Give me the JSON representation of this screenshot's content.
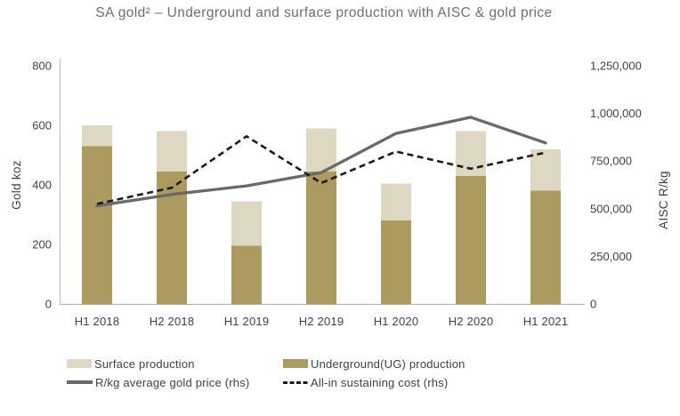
{
  "chart_data": {
    "type": "bar",
    "subtype": "stacked-bars-with-lines",
    "title": "SA gold² – Underground and surface production with AISC & gold price",
    "categories": [
      "H1 2018",
      "H2 2018",
      "H1 2019",
      "H2 2019",
      "H1 2020",
      "H2 2020",
      "H1 2021"
    ],
    "bar_series": [
      {
        "name": "Underground(UG) production",
        "values": [
          530,
          445,
          195,
          445,
          280,
          430,
          380
        ],
        "color": "#ab9b5e",
        "axis": "left"
      },
      {
        "name": "Surface production",
        "values": [
          70,
          135,
          150,
          145,
          125,
          150,
          140
        ],
        "color": "#ded8c2",
        "axis": "left",
        "stacked": true
      }
    ],
    "line_series": [
      {
        "name": "R/kg average gold price (rhs)",
        "values": [
          515000,
          575000,
          620000,
          690000,
          895000,
          980000,
          845000
        ],
        "color": "#696969",
        "style": "solid",
        "axis": "right"
      },
      {
        "name": "All-in sustaining cost (rhs)",
        "values": [
          525000,
          610000,
          880000,
          635000,
          800000,
          710000,
          795000
        ],
        "color": "#1c1c1c",
        "style": "dashed",
        "axis": "right"
      }
    ],
    "left_axis": {
      "title": "Gold koz",
      "min": 0,
      "max": 800,
      "ticks": [
        "0",
        "200",
        "400",
        "600",
        "800"
      ]
    },
    "right_axis": {
      "title": "AISC R/kg",
      "min": 0,
      "max": 1250000,
      "ticks": [
        "0",
        "250,000",
        "500,000",
        "750,000",
        "1,000,000",
        "1,250,000"
      ]
    },
    "grid": "off",
    "legend_position": "bottom",
    "colors": {
      "axis_line": "#c9c9c9",
      "baseline": "#b3b3b3",
      "tick_text": "#3d414a",
      "title_text": "#6f6f6f"
    }
  }
}
